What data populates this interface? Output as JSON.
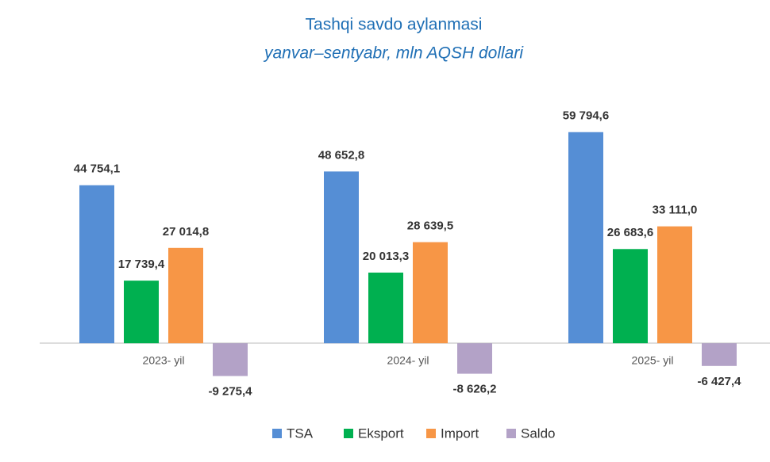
{
  "chart_data": {
    "type": "bar",
    "title": "Tashqi savdo aylanmasi",
    "subtitle": "yanvar–sentyabr, mln AQSH dollari",
    "categories": [
      "2023- yil",
      "2024- yil",
      "2025- yil"
    ],
    "series": [
      {
        "name": "TSA",
        "color": "#558ed5",
        "values": [
          44754.1,
          48652.8,
          59794.6
        ],
        "value_labels": [
          "44 754,1",
          "48 652,8",
          "59 794,6"
        ]
      },
      {
        "name": "Eksport",
        "color": "#00b050",
        "values": [
          17739.4,
          20013.3,
          26683.6
        ],
        "value_labels": [
          "17 739,4",
          "20 013,3",
          "26 683,6"
        ]
      },
      {
        "name": "Import",
        "color": "#f79646",
        "values": [
          27014.8,
          28639.5,
          33111.0
        ],
        "value_labels": [
          "27 014,8",
          "28 639,5",
          "33 111,0"
        ]
      },
      {
        "name": "Saldo",
        "color": "#b3a2c7",
        "values": [
          -9275.4,
          -8626.2,
          -6427.4
        ],
        "value_labels": [
          "-9 275,4",
          "-8 626,2",
          "-6 427,4"
        ]
      }
    ],
    "ylim": [
      -15000,
      75000
    ]
  }
}
